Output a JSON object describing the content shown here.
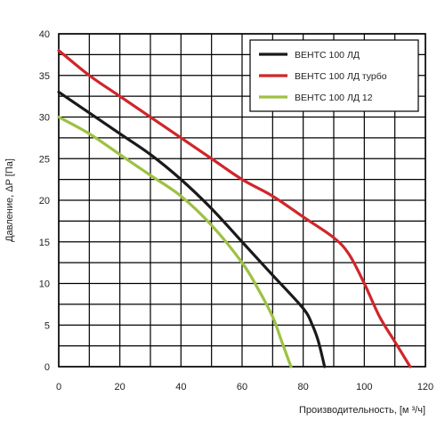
{
  "chart_data": {
    "type": "line",
    "xlabel": "Производительность, [м ³/ч]",
    "ylabel": "Давление, ΔP [Па]",
    "xlim": [
      0,
      120
    ],
    "ylim": [
      0,
      40
    ],
    "x_ticks": [
      0,
      20,
      40,
      60,
      80,
      100,
      120
    ],
    "y_ticks": [
      0,
      5,
      10,
      15,
      20,
      25,
      30,
      35,
      40
    ],
    "grid": true,
    "legend_position": "top-right",
    "series": [
      {
        "name": "ВЕНТС 100 ЛД",
        "color": "#1a1a1a",
        "points": [
          [
            0,
            33
          ],
          [
            10,
            30.5
          ],
          [
            20,
            28
          ],
          [
            30,
            25.5
          ],
          [
            40,
            22.5
          ],
          [
            50,
            19
          ],
          [
            60,
            15
          ],
          [
            70,
            11
          ],
          [
            80,
            7
          ],
          [
            83,
            5
          ],
          [
            85,
            3
          ],
          [
            87,
            0
          ]
        ]
      },
      {
        "name": "ВЕНТС 100 ЛД турбо",
        "color": "#d0262b",
        "points": [
          [
            0,
            38
          ],
          [
            10,
            35
          ],
          [
            20,
            32.5
          ],
          [
            30,
            30
          ],
          [
            40,
            27.5
          ],
          [
            50,
            25
          ],
          [
            60,
            22.5
          ],
          [
            70,
            20.5
          ],
          [
            80,
            18
          ],
          [
            90,
            15.5
          ],
          [
            95,
            13.5
          ],
          [
            100,
            10
          ],
          [
            105,
            6
          ],
          [
            110,
            3
          ],
          [
            115,
            0
          ]
        ]
      },
      {
        "name": "ВЕНТС 100 ЛД  12",
        "color": "#9dc143",
        "points": [
          [
            0,
            30
          ],
          [
            10,
            28
          ],
          [
            20,
            25.5
          ],
          [
            30,
            23
          ],
          [
            40,
            20.5
          ],
          [
            50,
            17
          ],
          [
            60,
            12.5
          ],
          [
            65,
            9.5
          ],
          [
            70,
            6
          ],
          [
            73,
            3
          ],
          [
            76,
            0
          ]
        ]
      }
    ]
  }
}
